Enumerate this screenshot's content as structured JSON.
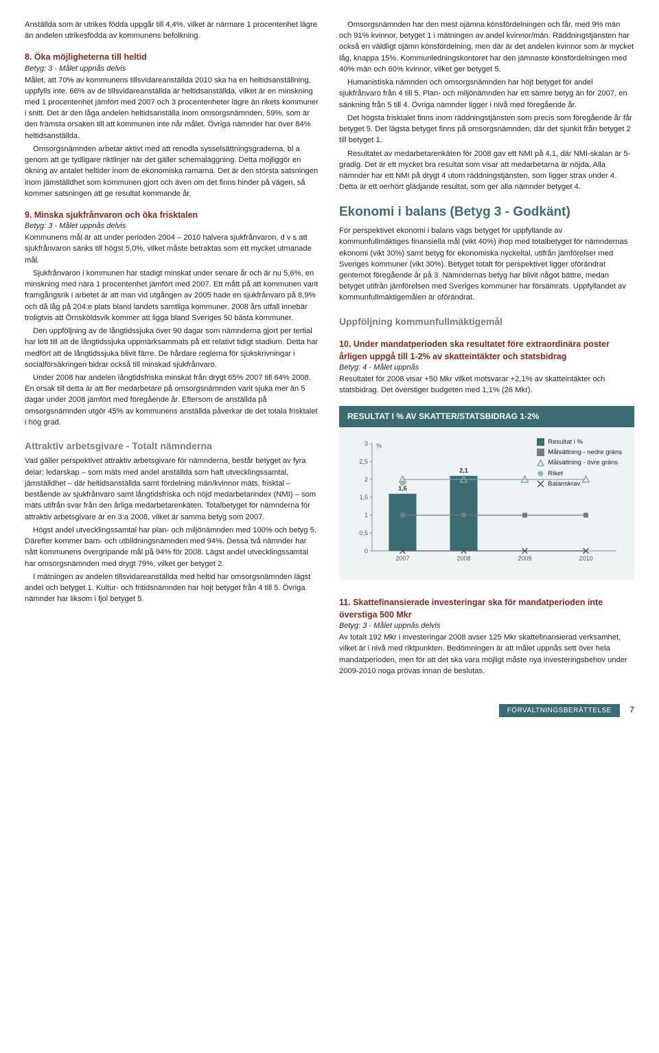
{
  "colors": {
    "heading_red": "#86271f",
    "heading_gray": "#7a7a7a",
    "heading_teal": "#3b6b73",
    "chart_panel_bg": "#eef3f4",
    "chart_header_bg": "#3b6b73",
    "text": "#222222",
    "footer_bg": "#3b6b73"
  },
  "left": {
    "p1": "Anställda som är utrikes födda uppgår till 4,4%, vilket är närmare 1 procentenhet lägre än andelen utrikesfödda av kommunens befolkning.",
    "s8": {
      "title": "8. Öka möjligheterna till heltid",
      "betyg": "Betyg: 3 - Målet uppnås delvis"
    },
    "p8a": "Målet, att 70% av kommunens tillsvidareanställda 2010 ska ha en heltidsanställning, uppfylls inte. 66% av de tillsvidareanställda är heltidsanställda, vilket är en minskning med 1 procentenhet jämfört med 2007 och 3 procentenheter lägre än rikets kommuner i snitt. Det är den låga andelen heltidsanställa inom omsorgsnämnden, 59%, som är den främsta orsaken till att kommunen inte når målet. Övriga nämnder har över 84% heltidsanställda.",
    "p8b": "Omsorgsnämnden arbetar aktivt med att renodla sysselsättningsgraderna, bl a genom att ge tydligare riktlinjer när det gäller schemaläggning. Detta möjliggör en ökning av antalet heltider inom de ekonomiska ramarna. Det är den största satsningen inom jämställdhet som kommunen gjort och även om det finns hinder på vägen, så kommer satsningen att ge resultat kommande år.",
    "s9": {
      "title": "9. Minska sjukfrånvaron och öka frisktalen",
      "betyg": "Betyg: 3 - Målet uppnås delvis"
    },
    "p9a": "Kommunens mål är att under perioden 2004 – 2010 halvera sjukfrånvaron, d v s att sjukfrånvaron sänks till högst 5,0%, vilket måste betraktas som ett mycket utmanade mål.",
    "p9b": "Sjukfrånvaron i kommunen har stadigt minskat under senare år och är nu 5,6%, en minskning med nära 1 procentenhet jämfört med 2007. Ett mått på att kommunen varit framgångsrik i arbetet är att man vid utgången av 2005 hade en sjukfrånvaro på 8,9% och då låg på 204:e plats bland landets samtliga kommuner. 2008 års utfall innebär troligtvis att Örnsköldsvik kommer att ligga bland Sveriges 50 bästa kommuner.",
    "p9c": "Den uppföljning av de långtidssjuka över 90 dagar som nämnderna gjort per tertial har lett till att de långtidssjuka uppmärksammats på ett relativt tidigt stadium. Detta har medfört att de långtidssjuka blivit färre. De hårdare reglerna för sjukskrivningar i socialförsäkringen bidrar också till minskad sjukfrånvaro.",
    "p9d": "Under 2008 har andelen långtidsfriska minskat från drygt 65% 2007 till 64% 2008. En orsak till detta är att fler medarbetare på omsorgsnämnden varit sjuka mer än 5 dagar under 2008 jämfört med föregående år. Eftersom de anställda på omsorgsnämnden utgör 45% av kommunens anställda påverkar de det totala frisktalet i hög grad.",
    "subAttr": "Attraktiv arbetsgivare - Totalt nämnderna",
    "pA1": "Vad gäller perspektivet attraktiv arbetsgivare för nämnderna, består betyget av fyra delar; ledarskap – som mäts med andel anställda som haft utvecklingssamtal, jämställdhet – där heltidsanställda samt fördelning män/kvinnor mäts, frisktal – bestående av sjukfrånvaro samt långtidsfriska och nöjd medarbetarindex (NMI) – som mäts utifrån svar från den årliga medarbetarenkäten. Totalbetyget för nämnderna för attraktiv arbetsgivare är en 3:a 2008, vilket är samma betyg som 2007.",
    "pA2": "Högst andel utvecklingssamtal har plan- och miljönämnden med 100% och betyg 5. Därefter kommer barn- och utbildningsnämnden med 94%. Dessa två nämnder har nått kommunens övergripande mål på 94% för 2008. Lägst andel utvecklingssamtal har omsorgsnämnden med drygt 79%, vilket ger betyget 2.",
    "pA3": "I mätningen av andelen tillsvidareanställda med heltid har omsorgsnämnden lägst andel och betyget 1. Kultur- och fritidsnämnden har höjt betyget från 4 till 5. Övriga nämnder har liksom i fjol betyget 5."
  },
  "right": {
    "pR1": "Omsorgsnämnden har den mest ojämna könsfördelningen och får, med 9% män och 91% kvinnor, betyget 1 i mätningen av andel kvinnor/män. Räddningstjänsten har också en väldligt ojämn könsfördelning, men där är det andelen kvinnor som är mycket låg, knappa 15%. Kommunledningskontoret har den jämnaste könsfördelningen med 40% män och 60% kvinnor, vilket ger betyget 5.",
    "pR2": "Humanistiska nämnden och omsorgsnämnden har höjt betyget för andel sjukfrånvaro från 4 till 5. Plan- och miljönämnden har ett sämre betyg än för 2007, en sänkning från 5 till 4. Övriga nämnder ligger i nivå med föregående år.",
    "pR3": "Det högsta frisktalet finns inom räddningstjänsten som precis som föregående år får betyget 5. Det lägsta betyget finns på omsorgsnämnden, där det sjunkit från betyget 2 till betyget 1.",
    "pR4": "Resultatet av medarbetarenkäten för 2008 gav ett NMI på 4,1, där NMI-skalan är 5-gradig. Det är ett mycket bra resultat som visar att medarbetarna är nöjda. Alla nämnder har ett NMI på drygt 4 utom räddningstjänsten, som ligger strax under 4. Detta är ett oerhört glädjande resultat, som ger alla nämnder betyget 4.",
    "bigHead": "Ekonomi i balans (Betyg 3 - Godkänt)",
    "pE1": "För perspektivet ekonomi i balans vägs betyget för uppfyllande av kommunfullmäktiges finansiella mål (vikt 40%) ihop med totalbetyget för nämndernas ekonomi (vikt 30%) samt betyg för ekonomiska nyckeltal, utifrån jämförelser med Sveriges kommuner (vikt 30%). Betyget totalt för perspektivet ligger oförändrat gentemot föregående år på 3. Nämndernas betyg har blivit något bättre, medan betyget utifrån jämförelsen med Sveriges kommuner har försämrats. Uppfyllandet av kommunfullmäktigemålen är oförändrat.",
    "subUpp": "Uppföljning kommunfullmäktigemål",
    "s10": {
      "title": "10. Under mandatperioden ska resultatet före extraordinära poster årligen uppgå till 1-2% av skatteintäkter och statsbidrag",
      "betyg": "Betyg: 4 - Målet uppnås"
    },
    "p10": "Resultatet för 2008 visar +50 Mkr vilket motsvarar +2,1% av skatteintäkter och statsbidrag. Det överstiger budgeten med 1,1% (26 Mkr).",
    "chartTitle": "RESULTAT I % AV SKATTER/STATSBIDRAG 1-2%",
    "legend": {
      "l1": "Resultat i %",
      "l2": "Målsättning - nedre gräns",
      "l3": "Målsättning - övre gräns",
      "l4": "Riket",
      "l5": "Balanskrav"
    },
    "chart": {
      "type": "bar",
      "categories": [
        "2007",
        "2008",
        "2009",
        "2010"
      ],
      "bar_values": [
        1.6,
        2.1,
        null,
        null
      ],
      "bar_labels": [
        "1,6",
        "2,1",
        "",
        ""
      ],
      "bar_color": "#3b6b73",
      "nedre": [
        1.0,
        1.0,
        1.0,
        1.0
      ],
      "ovre": [
        2.0,
        2.0,
        2.0,
        2.0
      ],
      "riket": [
        1.9,
        null,
        null,
        null
      ],
      "balanskrav": [
        0.0,
        0.0,
        0.0,
        0.0
      ],
      "yticks": [
        0,
        0.5,
        1,
        1.5,
        2,
        2.5,
        3
      ],
      "ytick_labels": [
        "0",
        "0,5",
        "1",
        "1,5",
        "2",
        "2,5",
        "3"
      ],
      "ylim": [
        0,
        3
      ],
      "y_unit": "%",
      "axis_color": "#888888",
      "marker_ovre": "triangle-open",
      "marker_nedre": "square-filled",
      "marker_riket": "circle-filled",
      "marker_balans": "x",
      "line_color_ovre": "#8aa6a0",
      "line_color_nedre": "#7a7a7a",
      "font_size_axis": 9,
      "font_size_label": 9
    },
    "s11": {
      "title": "11. Skattefinansierade investeringar ska för mandatperioden inte överstiga 500 Mkr",
      "betyg": "Betyg: 3 - Målet uppnås delvis"
    },
    "p11": "Av totalt 192 Mkr i investeringar 2008 avser 125 Mkr skattefinansierad verksamhet, vilket är i nivå med riktpunkten. Bedömningen är att målet uppnås sett över hela mandatperioden, men för att det ska vara möjligt måste nya investeringsbehov under 2009-2010 noga prövas innan de beslutas."
  },
  "footer": {
    "label": "FÖRVALTNINGSBERÄTTELSE",
    "page": "7"
  }
}
